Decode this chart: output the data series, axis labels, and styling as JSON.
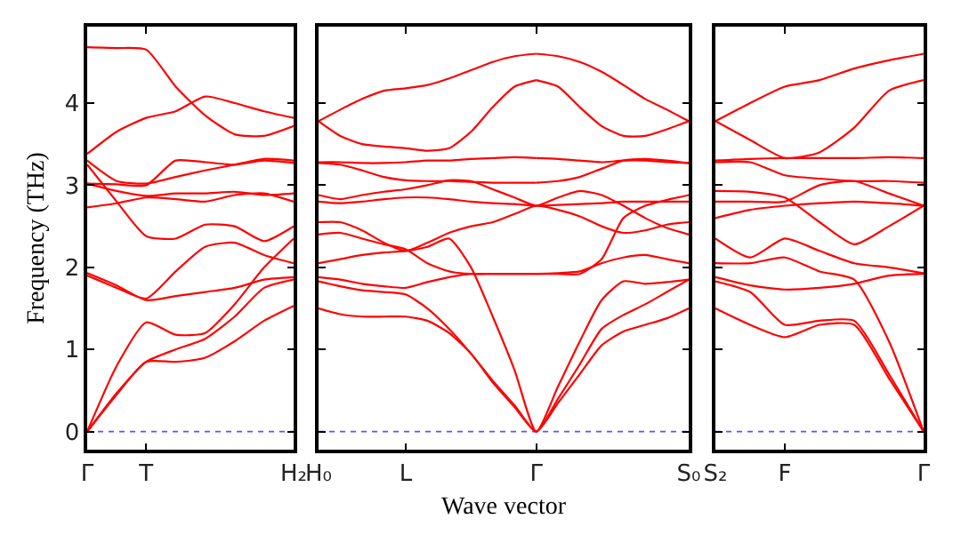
{
  "chart_data": [
    {
      "type": "line",
      "ylabel": "Frequency (THz)",
      "categories": [
        "Γ",
        null,
        "T",
        null,
        null,
        null,
        null,
        "H₂"
      ],
      "ylim": [
        -0.22,
        4.93
      ],
      "yticks": [
        0,
        1,
        2,
        3,
        4
      ],
      "ref_lines": [
        {
          "axis": "y",
          "value": 0,
          "color": "#5555ff",
          "line_style": "dotted"
        }
      ],
      "series": [
        {
          "color": "#ff0000",
          "values": [
            0,
            0.45,
            0.85,
            0.85,
            0.9,
            1.1,
            1.35,
            1.53
          ]
        },
        {
          "color": "#ff0000",
          "values": [
            0,
            0.47,
            0.85,
            1.0,
            1.13,
            1.4,
            1.75,
            1.85
          ]
        },
        {
          "color": "#ff0000",
          "values": [
            0,
            0.8,
            1.33,
            1.18,
            1.2,
            1.55,
            2.0,
            2.35
          ]
        },
        {
          "color": "#ff0000",
          "values": [
            1.93,
            1.78,
            1.6,
            1.65,
            1.7,
            1.75,
            1.85,
            1.88
          ]
        },
        {
          "color": "#ff0000",
          "values": [
            1.9,
            1.75,
            1.62,
            1.95,
            2.25,
            2.3,
            2.15,
            2.05
          ]
        },
        {
          "color": "#ff0000",
          "values": [
            3.25,
            2.8,
            2.38,
            2.35,
            2.52,
            2.5,
            2.32,
            2.5
          ]
        },
        {
          "color": "#ff0000",
          "values": [
            2.73,
            2.78,
            2.85,
            2.83,
            2.8,
            2.88,
            2.9,
            2.8
          ]
        },
        {
          "color": "#ff0000",
          "values": [
            3.02,
            2.93,
            2.87,
            2.9,
            2.9,
            2.92,
            2.88,
            2.9
          ]
        },
        {
          "color": "#ff0000",
          "values": [
            3.02,
            3.01,
            3.0,
            3.3,
            3.28,
            3.25,
            3.3,
            3.27
          ]
        },
        {
          "color": "#ff0000",
          "values": [
            3.3,
            3.05,
            3.02,
            3.1,
            3.18,
            3.25,
            3.32,
            3.3
          ]
        },
        {
          "color": "#ff0000",
          "values": [
            3.38,
            3.65,
            3.82,
            3.9,
            4.08,
            4.0,
            3.9,
            3.82
          ]
        },
        {
          "color": "#ff0000",
          "values": [
            4.68,
            4.67,
            4.65,
            4.2,
            3.85,
            3.62,
            3.6,
            3.72
          ]
        }
      ]
    },
    {
      "type": "line",
      "xlabel": "Wave vector",
      "tick_labels": "x",
      "categories": [
        "H₀",
        null,
        null,
        null,
        "L",
        null,
        null,
        null,
        null,
        null,
        "Γ",
        null,
        null,
        null,
        null,
        null,
        null,
        "S₀"
      ],
      "ylim": [
        -0.22,
        4.93
      ],
      "yticks": [
        0,
        1,
        2,
        3,
        4
      ],
      "ref_lines": [
        {
          "axis": "y",
          "value": 0,
          "color": "#5555ff",
          "line_style": "dotted"
        }
      ],
      "series": [
        {
          "color": "#ff0000",
          "values": [
            3.78,
            3.92,
            4.05,
            4.15,
            4.18,
            4.22,
            4.3,
            4.4,
            4.5,
            4.57,
            4.6,
            null,
            null,
            null,
            null,
            null,
            null,
            null
          ]
        },
        {
          "color": "#ff0000",
          "values": [
            null,
            null,
            null,
            null,
            null,
            null,
            null,
            null,
            null,
            null,
            4.6,
            4.57,
            4.5,
            4.38,
            4.22,
            4.05,
            3.92,
            3.78
          ]
        },
        {
          "color": "#ff0000",
          "values": [
            3.78,
            3.6,
            3.5,
            3.47,
            3.45,
            3.42,
            3.45,
            3.65,
            3.95,
            4.2,
            4.28,
            null,
            null,
            null,
            null,
            null,
            null,
            null
          ]
        },
        {
          "color": "#ff0000",
          "values": [
            null,
            null,
            null,
            null,
            null,
            null,
            null,
            null,
            null,
            null,
            4.28,
            4.2,
            3.95,
            3.72,
            3.6,
            3.6,
            3.68,
            3.78
          ]
        },
        {
          "color": "#ff0000",
          "values": [
            3.28,
            3.28,
            3.27,
            3.27,
            3.28,
            3.3,
            3.3,
            3.32,
            3.33,
            3.34,
            3.33,
            null,
            null,
            null,
            null,
            null,
            null,
            null
          ]
        },
        {
          "color": "#ff0000",
          "values": [
            null,
            null,
            null,
            null,
            null,
            null,
            null,
            null,
            null,
            null,
            3.33,
            3.32,
            3.3,
            3.28,
            3.3,
            3.3,
            3.28,
            3.27
          ]
        },
        {
          "color": "#ff0000",
          "values": [
            3.27,
            3.25,
            3.18,
            3.1,
            3.06,
            3.05,
            3.05,
            3.04,
            3.03,
            3.03,
            3.03,
            null,
            null,
            null,
            null,
            null,
            null,
            null
          ]
        },
        {
          "color": "#ff0000",
          "values": [
            null,
            null,
            null,
            null,
            null,
            null,
            null,
            null,
            null,
            null,
            3.03,
            3.05,
            3.1,
            3.2,
            3.3,
            3.32,
            3.3,
            3.27
          ]
        },
        {
          "color": "#ff0000",
          "values": [
            2.88,
            2.83,
            2.88,
            2.92,
            2.95,
            3.0,
            3.06,
            3.05,
            2.95,
            2.85,
            2.75,
            2.85,
            2.93,
            2.88,
            2.75,
            2.6,
            2.48,
            2.4
          ]
        },
        {
          "color": "#ff0000",
          "values": [
            2.8,
            2.78,
            2.8,
            2.83,
            2.85,
            2.85,
            2.83,
            2.8,
            2.78,
            2.77,
            2.75,
            2.76,
            2.77,
            2.78,
            2.8,
            2.8,
            2.8,
            2.8
          ]
        },
        {
          "color": "#ff0000",
          "values": [
            2.55,
            2.55,
            2.45,
            2.3,
            2.2,
            2.3,
            2.42,
            2.5,
            2.55,
            2.65,
            2.75,
            2.7,
            2.62,
            2.5,
            2.42,
            2.45,
            2.52,
            2.55
          ]
        },
        {
          "color": "#ff0000",
          "values": [
            2.4,
            2.42,
            2.35,
            2.28,
            2.22,
            2.05,
            1.95,
            1.92,
            1.92,
            1.92,
            1.92,
            1.93,
            1.95,
            2.05,
            2.12,
            2.15,
            2.1,
            2.05
          ]
        },
        {
          "color": "#ff0000",
          "values": [
            2.05,
            2.1,
            2.15,
            2.18,
            2.2,
            2.25,
            2.35,
            2.0,
            1.4,
            0.75,
            0,
            0.55,
            1.1,
            1.6,
            1.83,
            1.8,
            1.82,
            1.85
          ]
        },
        {
          "color": "#ff0000",
          "values": [
            1.88,
            1.85,
            1.8,
            1.77,
            1.75,
            1.82,
            1.88,
            1.92,
            1.92,
            1.92,
            1.92,
            1.92,
            1.92,
            2.1,
            2.6,
            2.75,
            2.82,
            2.88
          ]
        },
        {
          "color": "#ff0000",
          "values": [
            1.83,
            1.77,
            1.72,
            1.7,
            1.67,
            1.5,
            1.25,
            0.95,
            0.62,
            0.32,
            0,
            0.4,
            0.82,
            1.25,
            1.42,
            1.55,
            1.7,
            1.85
          ]
        },
        {
          "color": "#ff0000",
          "values": [
            1.5,
            1.43,
            1.4,
            1.4,
            1.4,
            1.35,
            1.2,
            0.95,
            0.6,
            0.3,
            0,
            0.35,
            0.7,
            1.05,
            1.22,
            1.3,
            1.38,
            1.5
          ]
        }
      ]
    },
    {
      "type": "line",
      "tick_labels": "x",
      "categories": [
        "S₂",
        null,
        "F",
        null,
        null,
        null,
        "Γ"
      ],
      "ylim": [
        -0.22,
        4.93
      ],
      "yticks": [
        0,
        1,
        2,
        3,
        4
      ],
      "ref_lines": [
        {
          "axis": "y",
          "value": 0,
          "color": "#5555ff",
          "line_style": "dotted"
        }
      ],
      "series": [
        {
          "color": "#ff0000",
          "values": [
            3.78,
            4.0,
            4.2,
            4.28,
            4.42,
            4.52,
            4.6
          ]
        },
        {
          "color": "#ff0000",
          "values": [
            3.78,
            3.55,
            3.33,
            3.4,
            3.7,
            4.15,
            4.28
          ]
        },
        {
          "color": "#ff0000",
          "values": [
            3.3,
            3.32,
            3.33,
            3.33,
            3.33,
            3.34,
            3.33
          ]
        },
        {
          "color": "#ff0000",
          "values": [
            3.28,
            3.28,
            3.12,
            3.08,
            3.05,
            3.05,
            3.03
          ]
        },
        {
          "color": "#ff0000",
          "values": [
            2.93,
            2.92,
            2.85,
            2.55,
            2.28,
            2.5,
            2.75
          ]
        },
        {
          "color": "#ff0000",
          "values": [
            2.8,
            2.8,
            2.8,
            3.0,
            3.05,
            2.9,
            2.75
          ]
        },
        {
          "color": "#ff0000",
          "values": [
            2.6,
            2.7,
            2.75,
            2.78,
            2.8,
            2.78,
            2.75
          ]
        },
        {
          "color": "#ff0000",
          "values": [
            2.35,
            2.12,
            2.35,
            2.2,
            2.05,
            2.0,
            1.93
          ]
        },
        {
          "color": "#ff0000",
          "values": [
            2.05,
            2.05,
            2.12,
            1.95,
            1.85,
            1.1,
            0
          ]
        },
        {
          "color": "#ff0000",
          "values": [
            1.88,
            1.78,
            1.73,
            1.75,
            1.8,
            1.9,
            1.92
          ]
        },
        {
          "color": "#ff0000",
          "values": [
            1.83,
            1.7,
            1.3,
            1.35,
            1.35,
            0.7,
            0
          ]
        },
        {
          "color": "#ff0000",
          "values": [
            1.5,
            1.3,
            1.15,
            1.3,
            1.3,
            0.65,
            0
          ]
        }
      ]
    }
  ]
}
